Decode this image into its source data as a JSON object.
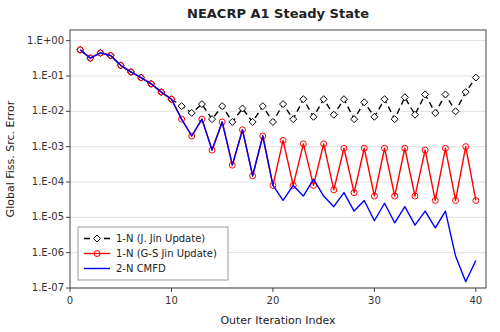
{
  "chart_data": {
    "type": "line",
    "title": "NEACRP A1 Steady State",
    "x_label": "Outer Iteration Index",
    "y_label": "Global Fiss. Src. Error",
    "log": "y",
    "grid": true,
    "legend": "lower left",
    "xlim": [
      0,
      41
    ],
    "ylim": [
      1e-07,
      2.0
    ],
    "xticks": [
      0,
      10,
      20,
      30,
      40
    ],
    "yticks": [
      {
        "value": 1e-07,
        "label": "1.E-07"
      },
      {
        "value": 1e-06,
        "label": "1.E-06"
      },
      {
        "value": 1e-05,
        "label": "1.E-05"
      },
      {
        "value": 0.0001,
        "label": "1.E-04"
      },
      {
        "value": 0.001,
        "label": "1.E-03"
      },
      {
        "value": 0.01,
        "label": "1.E-02"
      },
      {
        "value": 0.1,
        "label": "1.E-01"
      },
      {
        "value": 1.0,
        "label": "1.E+00"
      }
    ],
    "x": [
      1,
      2,
      3,
      4,
      5,
      6,
      7,
      8,
      9,
      10,
      11,
      12,
      13,
      14,
      15,
      16,
      17,
      18,
      19,
      20,
      21,
      22,
      23,
      24,
      25,
      26,
      27,
      28,
      29,
      30,
      31,
      32,
      33,
      34,
      35,
      36,
      37,
      38,
      39,
      40
    ],
    "series": [
      {
        "name": "1-N (J. Jin Update)",
        "color": "black",
        "line_style": "dashed",
        "marker": "diamond",
        "values": [
          0.55,
          0.32,
          0.45,
          0.38,
          0.2,
          0.13,
          0.09,
          0.06,
          0.035,
          0.022,
          0.014,
          0.009,
          0.016,
          0.006,
          0.014,
          0.005,
          0.012,
          0.005,
          0.014,
          0.005,
          0.016,
          0.006,
          0.022,
          0.007,
          0.022,
          0.008,
          0.022,
          0.006,
          0.018,
          0.007,
          0.022,
          0.006,
          0.025,
          0.008,
          0.03,
          0.009,
          0.03,
          0.01,
          0.035,
          0.09
        ]
      },
      {
        "name": "1-N (G-S Jin Update)",
        "color": "red",
        "line_style": "solid",
        "marker": "circle",
        "values": [
          0.55,
          0.32,
          0.45,
          0.38,
          0.2,
          0.13,
          0.09,
          0.06,
          0.035,
          0.022,
          0.006,
          0.002,
          0.006,
          0.0008,
          0.005,
          0.0003,
          0.003,
          0.00015,
          0.002,
          8e-05,
          0.0015,
          8e-05,
          0.0012,
          8e-05,
          0.0012,
          6e-05,
          0.0009,
          5e-05,
          0.0009,
          4e-05,
          0.0009,
          4e-05,
          0.0009,
          4e-05,
          0.0008,
          3e-05,
          0.0009,
          3e-05,
          0.001,
          3e-05
        ]
      },
      {
        "name": "2-N CMFD",
        "color": "blue",
        "line_style": "solid",
        "marker": "none",
        "values": [
          0.55,
          0.32,
          0.45,
          0.38,
          0.2,
          0.13,
          0.09,
          0.06,
          0.035,
          0.022,
          0.006,
          0.002,
          0.006,
          0.0008,
          0.005,
          0.0003,
          0.003,
          0.00015,
          0.002,
          8e-05,
          3e-05,
          8e-05,
          4e-05,
          0.00012,
          4e-05,
          2e-05,
          5e-05,
          1.5e-05,
          3e-05,
          8e-06,
          2.5e-05,
          7e-06,
          2e-05,
          6e-06,
          1.5e-05,
          5e-06,
          1.5e-05,
          8e-07,
          1.5e-07,
          6e-07
        ]
      }
    ]
  }
}
